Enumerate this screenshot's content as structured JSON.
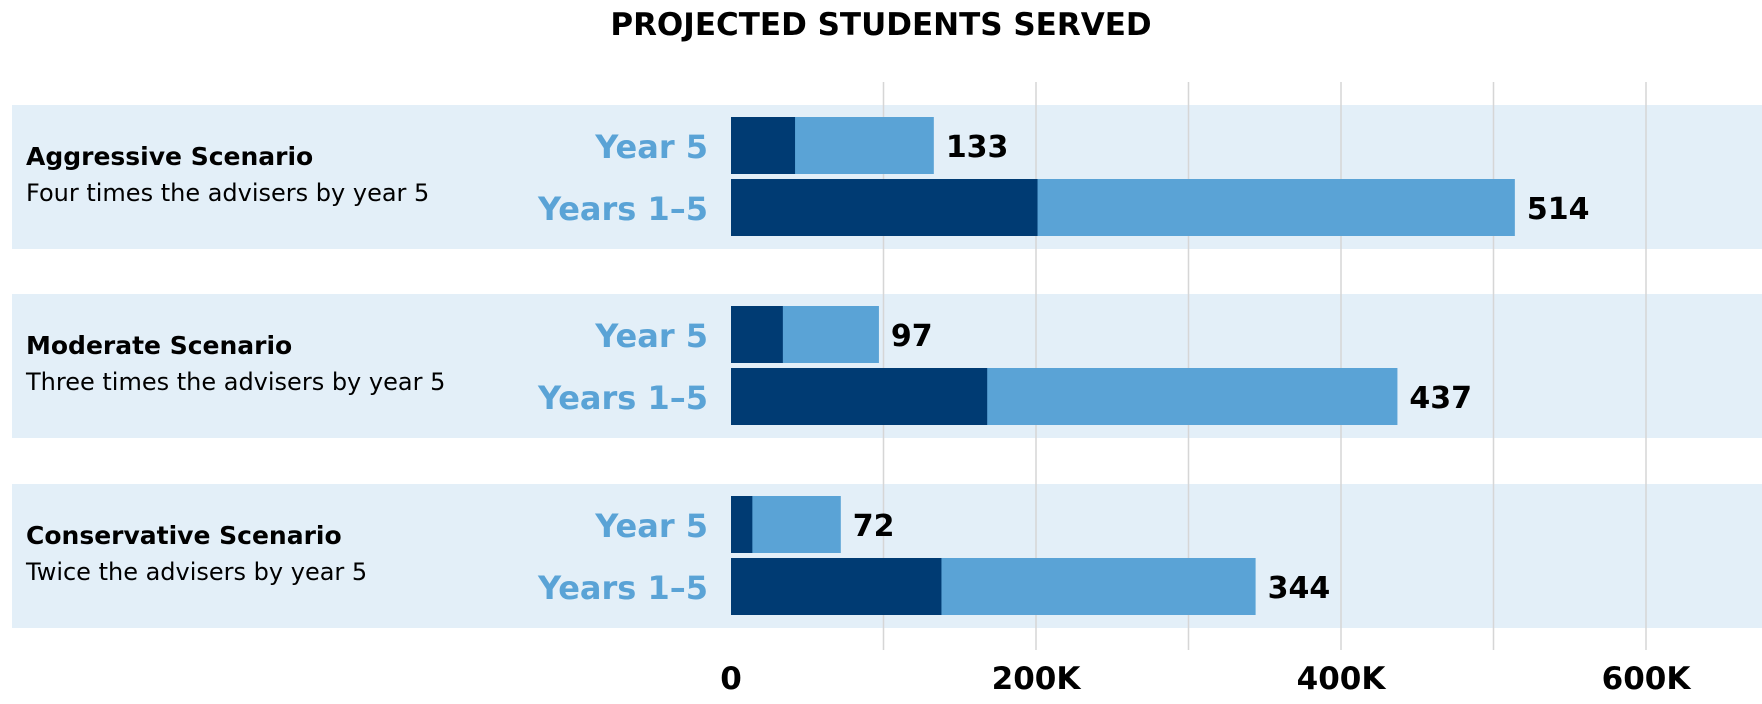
{
  "chart_data": {
    "type": "bar",
    "orientation": "horizontal",
    "stacked": true,
    "title": "PROJECTED STUDENTS SERVED",
    "x_ticks": [
      {
        "value": 0,
        "label": "0"
      },
      {
        "value": 200,
        "label": "200K"
      },
      {
        "value": 400,
        "label": "400K"
      },
      {
        "value": 600,
        "label": "600K"
      }
    ],
    "gridline_values": [
      100,
      200,
      300,
      400,
      500,
      600
    ],
    "xlim": [
      0,
      670
    ],
    "groups": [
      {
        "name": "Aggressive Scenario",
        "description": "Four times the advisers by year 5",
        "rows": [
          {
            "label": "Year 5",
            "dark": 42,
            "total": 133,
            "value_label": "133"
          },
          {
            "label": "Years 1–5",
            "dark": 201,
            "total": 514,
            "value_label": "514"
          }
        ]
      },
      {
        "name": "Moderate Scenario",
        "description": "Three times the advisers by year 5",
        "rows": [
          {
            "label": "Year 5",
            "dark": 34,
            "total": 97,
            "value_label": "97"
          },
          {
            "label": "Years 1–5",
            "dark": 168,
            "total": 437,
            "value_label": "437"
          }
        ]
      },
      {
        "name": "Conservative Scenario",
        "description": "Twice the advisers by year 5",
        "rows": [
          {
            "label": "Year 5",
            "dark": 14,
            "total": 72,
            "value_label": "72"
          },
          {
            "label": "Years 1–5",
            "dark": 138,
            "total": 344,
            "value_label": "344"
          }
        ]
      }
    ],
    "colors": {
      "band": "#e3eff8",
      "dark": "#003b73",
      "light": "#5aa3d6",
      "row_label": "#5aa3d6",
      "gridline": "#d6d6d6"
    }
  }
}
